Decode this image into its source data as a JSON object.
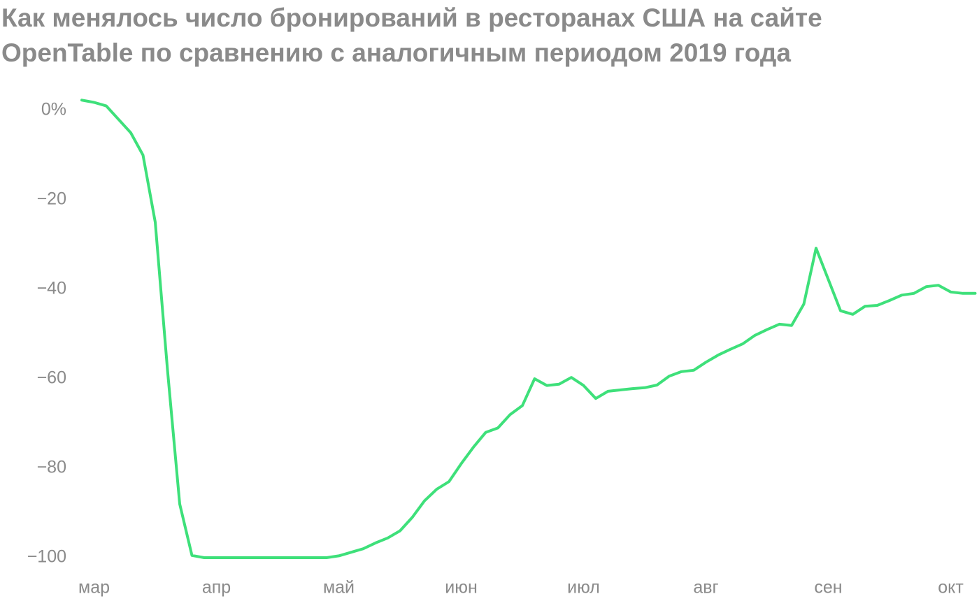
{
  "chart_data": {
    "type": "line",
    "title": [
      "Как менялось число бронирований в ресторанах США на сайте",
      "OpenTable по сравнению с аналогичным периодом 2019 года"
    ],
    "categories": [
      null,
      "мар",
      null,
      null,
      null,
      null,
      null,
      null,
      null,
      null,
      null,
      "апр",
      null,
      null,
      null,
      null,
      null,
      null,
      null,
      null,
      null,
      "май",
      null,
      null,
      null,
      null,
      null,
      null,
      null,
      null,
      null,
      "июн",
      null,
      null,
      null,
      null,
      null,
      null,
      null,
      null,
      null,
      "июл",
      null,
      null,
      null,
      null,
      null,
      null,
      null,
      null,
      null,
      "авг",
      null,
      null,
      null,
      null,
      null,
      null,
      null,
      null,
      null,
      "сен",
      null,
      null,
      null,
      null,
      null,
      null,
      null,
      null,
      null,
      "окт",
      null,
      null
    ],
    "values": [
      2.3,
      1.8,
      1,
      -2,
      -5,
      -10,
      -25,
      -58,
      -88,
      -99.5,
      -100,
      -100,
      -100,
      -100,
      -100,
      -100,
      -100,
      -100,
      -100,
      -100,
      -100,
      -99.6,
      -98.8,
      -98,
      -96.7,
      -95.6,
      -94,
      -91,
      -87.3,
      -84.7,
      -83,
      -79,
      -75.3,
      -72,
      -71,
      -68,
      -66,
      -60,
      -61.5,
      -61.2,
      -59.7,
      -61.5,
      -64.4,
      -62.8,
      -62.5,
      -62.2,
      -62,
      -61.4,
      -59.4,
      -58.4,
      -58.1,
      -56.3,
      -54.7,
      -53.4,
      -52.2,
      -50.3,
      -49,
      -47.8,
      -48.1,
      -43.3,
      -30.8,
      -37.8,
      -44.8,
      -45.6,
      -43.8,
      -43.6,
      -42.5,
      -41.3,
      -40.9,
      -39.4,
      -39.1,
      -40.6,
      -40.9,
      -40.9
    ],
    "color": "#3ee07a",
    "ylim": [
      -102,
      4
    ],
    "yticks": [
      {
        "value": 0,
        "label": "0%"
      },
      {
        "value": -20,
        "label": "−20"
      },
      {
        "value": -40,
        "label": "−40"
      },
      {
        "value": -60,
        "label": "−60"
      },
      {
        "value": -80,
        "label": "−80"
      },
      {
        "value": -100,
        "label": "−100"
      }
    ],
    "grid": false
  }
}
